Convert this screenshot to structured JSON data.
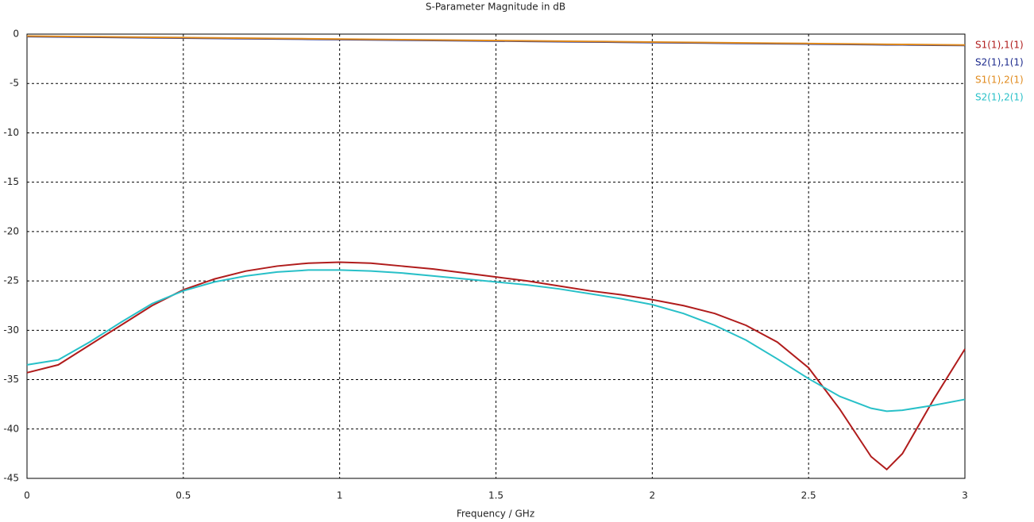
{
  "chart_data": {
    "type": "line",
    "title": "S-Parameter Magnitude in dB",
    "x_label": "Frequency / GHz",
    "x": [
      0,
      0.1,
      0.2,
      0.3,
      0.4,
      0.5,
      0.6,
      0.7,
      0.8,
      0.9,
      1.0,
      1.1,
      1.2,
      1.3,
      1.4,
      1.5,
      1.6,
      1.7,
      1.8,
      1.9,
      2.0,
      2.1,
      2.2,
      2.3,
      2.4,
      2.5,
      2.6,
      2.7,
      2.75,
      2.8,
      2.9,
      3.0
    ],
    "series": [
      {
        "name": "S1(1),1(1)",
        "color": "#b01c1c",
        "values": [
          -34.3,
          -33.5,
          -31.5,
          -29.5,
          -27.5,
          -25.9,
          -24.8,
          -24.0,
          -23.5,
          -23.2,
          -23.1,
          -23.2,
          -23.5,
          -23.8,
          -24.2,
          -24.6,
          -25.0,
          -25.5,
          -26.0,
          -26.4,
          -26.9,
          -27.5,
          -28.3,
          -29.5,
          -31.2,
          -33.8,
          -38.0,
          -42.8,
          -44.1,
          -42.5,
          -37.0,
          -31.9
        ]
      },
      {
        "name": "S2(1),1(1)",
        "color": "#1c2a8c",
        "values": [
          -0.25,
          -0.28,
          -0.31,
          -0.34,
          -0.37,
          -0.4,
          -0.43,
          -0.46,
          -0.49,
          -0.52,
          -0.55,
          -0.58,
          -0.61,
          -0.64,
          -0.67,
          -0.7,
          -0.73,
          -0.76,
          -0.79,
          -0.82,
          -0.85,
          -0.88,
          -0.91,
          -0.94,
          -0.97,
          -1.0,
          -1.03,
          -1.06,
          -1.08,
          -1.09,
          -1.12,
          -1.15
        ]
      },
      {
        "name": "S1(1),2(1)",
        "color": "#e08a1c",
        "values": [
          -0.2,
          -0.23,
          -0.26,
          -0.29,
          -0.32,
          -0.35,
          -0.38,
          -0.41,
          -0.44,
          -0.47,
          -0.5,
          -0.53,
          -0.56,
          -0.59,
          -0.62,
          -0.65,
          -0.68,
          -0.71,
          -0.74,
          -0.77,
          -0.8,
          -0.83,
          -0.86,
          -0.89,
          -0.92,
          -0.95,
          -0.98,
          -1.01,
          -1.03,
          -1.04,
          -1.07,
          -1.1
        ]
      },
      {
        "name": "S2(1),2(1)",
        "color": "#28c0c8",
        "values": [
          -33.5,
          -33.0,
          -31.2,
          -29.2,
          -27.3,
          -26.0,
          -25.1,
          -24.5,
          -24.1,
          -23.9,
          -23.9,
          -24.0,
          -24.2,
          -24.5,
          -24.8,
          -25.1,
          -25.4,
          -25.8,
          -26.3,
          -26.8,
          -27.4,
          -28.3,
          -29.5,
          -31.0,
          -32.9,
          -34.9,
          -36.7,
          -37.9,
          -38.2,
          -38.1,
          -37.6,
          -37.0
        ]
      }
    ],
    "xlim": [
      0,
      3
    ],
    "xticks": [
      0,
      0.5,
      1,
      1.5,
      2,
      2.5,
      3
    ],
    "ylim": [
      -45,
      0
    ],
    "yticks": [
      0,
      -5,
      -10,
      -15,
      -20,
      -25,
      -30,
      -35,
      -40,
      -45
    ],
    "grid": true,
    "legend": "right"
  }
}
